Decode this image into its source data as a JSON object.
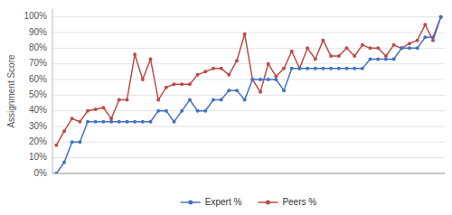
{
  "chart_data": {
    "type": "line",
    "ylabel": "Assignment Score",
    "categories": [
      null,
      null,
      null,
      null,
      null,
      null,
      null,
      null,
      null,
      null,
      null,
      null,
      null,
      null,
      null,
      null,
      null,
      null,
      null,
      null,
      null,
      null,
      null,
      null,
      null,
      null,
      null,
      null,
      null,
      null,
      null,
      null,
      null,
      null,
      null,
      null,
      null,
      null,
      null,
      null,
      null,
      null,
      null,
      null,
      null,
      null,
      null,
      null,
      null,
      null
    ],
    "series": [
      {
        "name": "Expert %",
        "color": "#4472C4",
        "marker": "circle",
        "values": [
          0,
          7,
          20,
          20,
          33,
          33,
          33,
          33,
          33,
          33,
          33,
          33,
          33,
          40,
          40,
          33,
          40,
          47,
          40,
          40,
          47,
          47,
          53,
          53,
          47,
          60,
          60,
          60,
          60,
          53,
          67,
          67,
          67,
          67,
          67,
          67,
          67,
          67,
          67,
          67,
          73,
          73,
          73,
          73,
          80,
          80,
          80,
          87,
          87,
          100
        ]
      },
      {
        "name": "Peers %",
        "color": "#BE4B48",
        "marker": "circle",
        "values": [
          18,
          27,
          35,
          33,
          40,
          41,
          42,
          35,
          47,
          47,
          76,
          60,
          73,
          47,
          55,
          57,
          57,
          57,
          63,
          65,
          67,
          67,
          63,
          72,
          89,
          60,
          52,
          70,
          62,
          67,
          78,
          67,
          80,
          73,
          85,
          75,
          75,
          80,
          75,
          82,
          80,
          80,
          75,
          82,
          80,
          83,
          85,
          95,
          85,
          100
        ]
      }
    ],
    "ylim": [
      0,
      105
    ],
    "yticks": [
      {
        "value": 0,
        "label": "0%"
      },
      {
        "value": 10,
        "label": "10%"
      },
      {
        "value": 20,
        "label": "20%"
      },
      {
        "value": 30,
        "label": "30%"
      },
      {
        "value": 40,
        "label": "40%"
      },
      {
        "value": 50,
        "label": "50%"
      },
      {
        "value": 60,
        "label": "60%"
      },
      {
        "value": 70,
        "label": "70%"
      },
      {
        "value": 80,
        "label": "80%"
      },
      {
        "value": 90,
        "label": "90%"
      },
      {
        "value": 100,
        "label": "100%"
      }
    ],
    "grid": true,
    "legend": "bottom",
    "tick_labels": "y"
  }
}
